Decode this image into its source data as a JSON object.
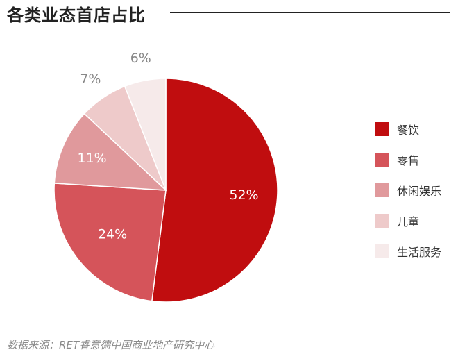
{
  "chart_data": {
    "type": "pie",
    "title": "各类业态首店占比",
    "categories": [
      "餐饮",
      "零售",
      "休闲娱乐",
      "儿童",
      "生活服务"
    ],
    "values": [
      52,
      24,
      11,
      7,
      6
    ],
    "value_labels": [
      "52%",
      "24%",
      "11%",
      "7%",
      "6%"
    ],
    "colors": [
      "#c00d0f",
      "#d5545a",
      "#e0999c",
      "#eecaca",
      "#f6eaea"
    ],
    "label_colors": [
      "#ffffff",
      "#ffffff",
      "#ffffff",
      "#888888",
      "#888888"
    ],
    "start_angle_deg": 0,
    "direction": "clockwise",
    "legend_position": "right"
  },
  "footer": {
    "source": "数据来源：RET睿意德中国商业地产研究中心"
  }
}
